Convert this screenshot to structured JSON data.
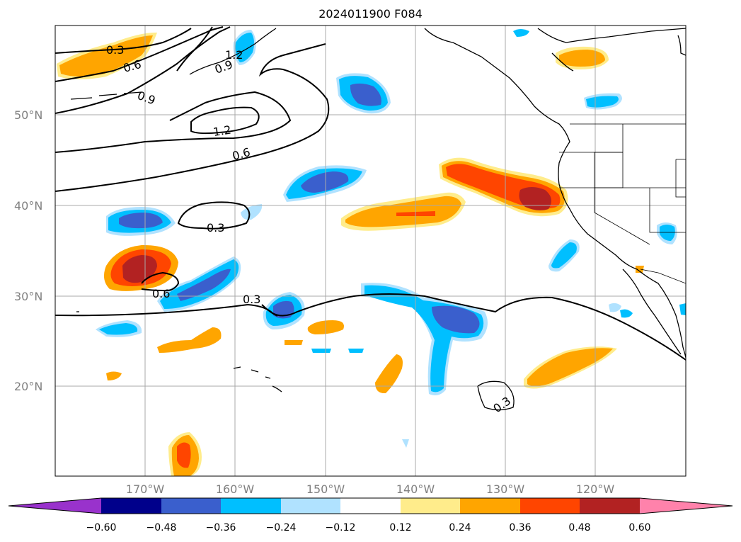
{
  "title": "2024011900 F084",
  "lat_labels": [
    "50°N",
    "40°N",
    "30°N",
    "20°N"
  ],
  "lon_labels": [
    "170°W",
    "160°W",
    "150°W",
    "140°W",
    "130°W",
    "120°W"
  ],
  "contour_labels": [
    "0.3",
    "0.6",
    "0.9",
    "1.2",
    "0.9",
    "1.2",
    "0.6",
    "0.3",
    "0.6",
    "0.3",
    "0.3"
  ],
  "colorbar": {
    "ticks": [
      "−0.60",
      "−0.48",
      "−0.36",
      "−0.24",
      "−0.12",
      "0.12",
      "0.24",
      "0.36",
      "0.48",
      "0.60"
    ],
    "colors": [
      "#9932cc",
      "#00008b",
      "#3a5fcd",
      "#00bfff",
      "#b0e2ff",
      "#ffffff",
      "#ffec8b",
      "#ffa500",
      "#ff4500",
      "#b22222",
      "#ff82ab"
    ]
  },
  "colors": {
    "grid": "#a9a9a9",
    "contour": "#000000",
    "coast": "#000000"
  }
}
